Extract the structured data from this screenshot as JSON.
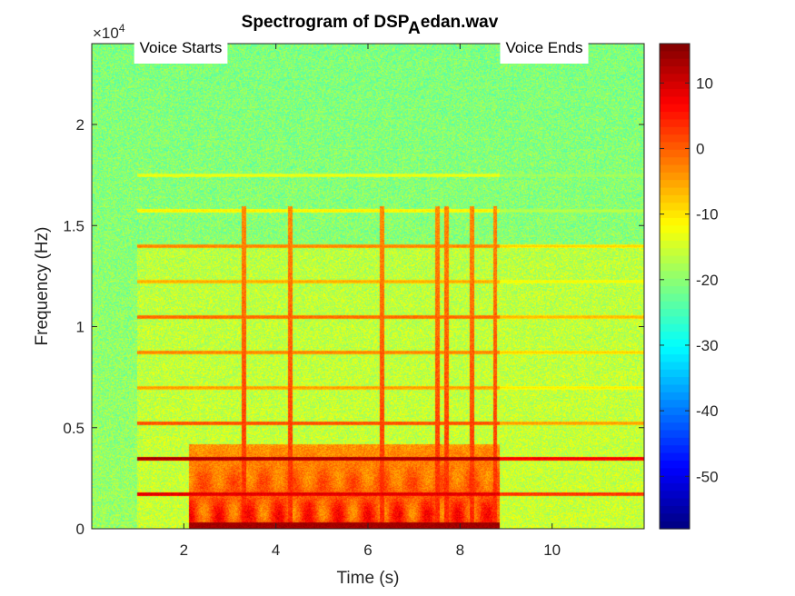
{
  "chart_data": {
    "type": "heatmap",
    "title_main": "Spectrogram of DSP",
    "title_sub": "A",
    "title_end": "edan.wav",
    "xlabel": "Time (s)",
    "ylabel": "Frequency (Hz)",
    "y_multiplier_prefix": "×10",
    "y_multiplier_exp": "4",
    "xlim": [
      0,
      12
    ],
    "ylim": [
      0,
      24000
    ],
    "x_ticks": [
      2,
      4,
      6,
      8,
      10
    ],
    "x_tick_labels": [
      "2",
      "4",
      "6",
      "8",
      "10"
    ],
    "y_ticks": [
      0,
      5000,
      10000,
      15000,
      20000
    ],
    "y_tick_labels": [
      "0",
      "0.5",
      "1",
      "1.5",
      "2"
    ],
    "colorbar": {
      "colormap": "jet",
      "clim": [
        -58,
        16
      ],
      "ticks": [
        10,
        0,
        -10,
        -20,
        -30,
        -40,
        -50
      ],
      "tick_labels": [
        "10",
        "0",
        "-10",
        "-20",
        "-30",
        "-40",
        "-50"
      ]
    },
    "annotations": [
      {
        "text": "Voice Starts",
        "x": 1.0,
        "y": 24000
      },
      {
        "text": "Voice Ends",
        "x": 8.95,
        "y": 24000
      }
    ],
    "voice_start_s": 0.97,
    "voice_end_s": 8.85,
    "harmonic_lines_hz": [
      1750,
      3500,
      5250,
      7000,
      8750,
      10500,
      12250,
      14000,
      15750,
      17500
    ],
    "harmonic_levels_db": [
      10,
      14,
      2,
      -4,
      -2,
      0,
      -5,
      -2,
      -10,
      -12
    ],
    "bursts_s": [
      3.3,
      4.3,
      6.3,
      7.5,
      7.7,
      8.25,
      8.75
    ]
  }
}
